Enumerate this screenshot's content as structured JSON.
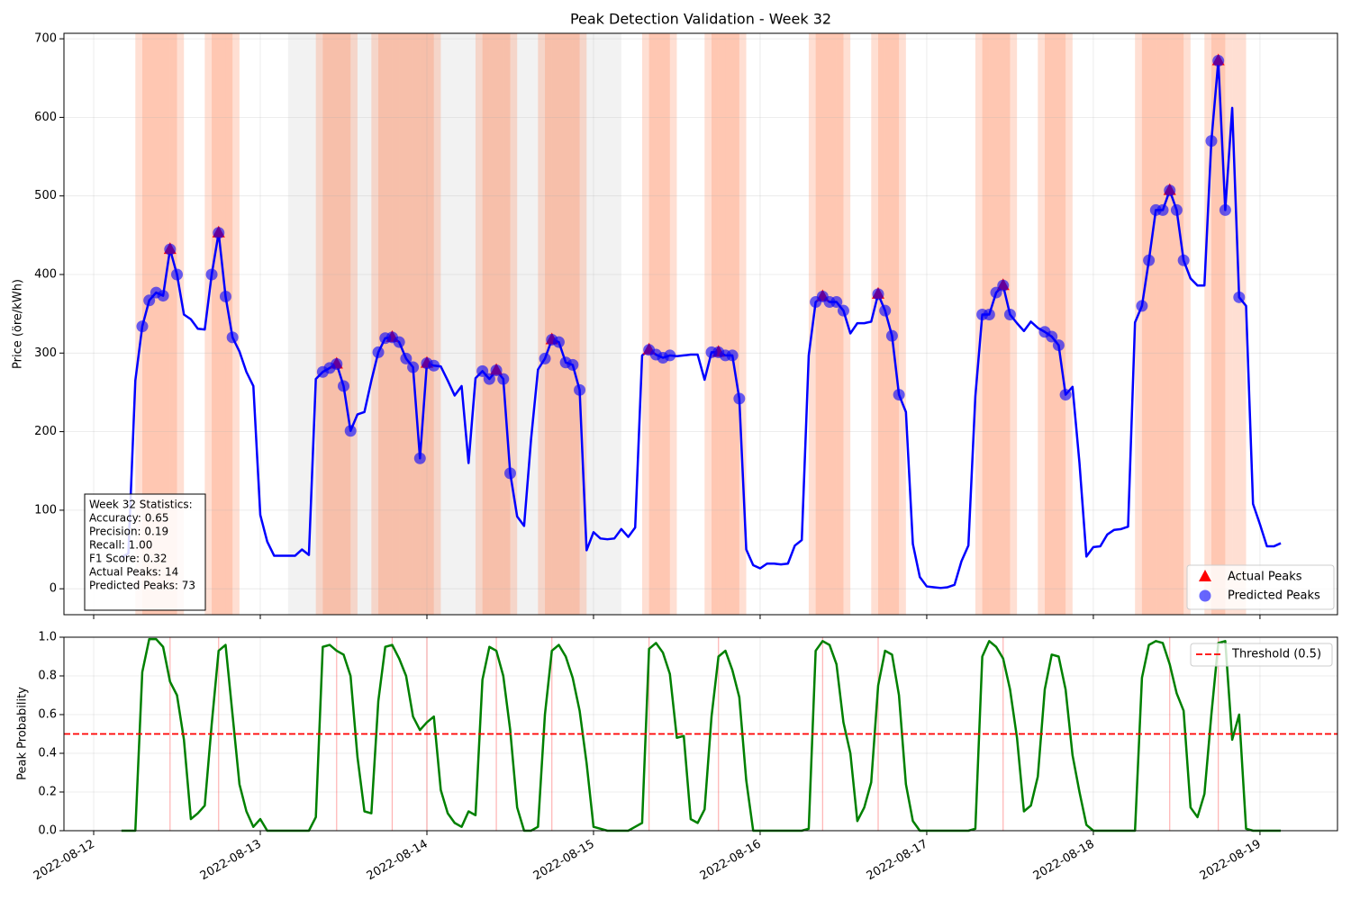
{
  "chart_data": [
    {
      "type": "line",
      "title": "Peak Detection Validation - Week 32",
      "ylabel": "Price (öre/kWh)",
      "x": [
        "2022-08-12T04:00",
        "2022-08-12T05:00",
        "2022-08-12T06:00",
        "2022-08-12T07:00",
        "2022-08-12T08:00",
        "2022-08-12T09:00",
        "2022-08-12T10:00",
        "2022-08-12T11:00",
        "2022-08-12T12:00",
        "2022-08-12T13:00",
        "2022-08-12T14:00",
        "2022-08-12T15:00",
        "2022-08-12T16:00",
        "2022-08-12T17:00",
        "2022-08-12T18:00",
        "2022-08-12T19:00",
        "2022-08-12T20:00",
        "2022-08-12T21:00",
        "2022-08-12T22:00",
        "2022-08-12T23:00",
        "2022-08-13T00:00",
        "2022-08-13T01:00",
        "2022-08-13T02:00",
        "2022-08-13T03:00",
        "2022-08-13T04:00",
        "2022-08-13T05:00",
        "2022-08-13T06:00",
        "2022-08-13T07:00",
        "2022-08-13T08:00",
        "2022-08-13T09:00",
        "2022-08-13T10:00",
        "2022-08-13T11:00",
        "2022-08-13T12:00",
        "2022-08-13T13:00",
        "2022-08-13T14:00",
        "2022-08-13T15:00",
        "2022-08-13T16:00",
        "2022-08-13T17:00",
        "2022-08-13T18:00",
        "2022-08-13T19:00",
        "2022-08-13T20:00",
        "2022-08-13T21:00",
        "2022-08-13T22:00",
        "2022-08-13T23:00",
        "2022-08-14T00:00",
        "2022-08-14T01:00",
        "2022-08-14T02:00",
        "2022-08-14T03:00",
        "2022-08-14T04:00",
        "2022-08-14T05:00",
        "2022-08-14T06:00",
        "2022-08-14T07:00",
        "2022-08-14T08:00",
        "2022-08-14T09:00",
        "2022-08-14T10:00",
        "2022-08-14T11:00",
        "2022-08-14T12:00",
        "2022-08-14T13:00",
        "2022-08-14T14:00",
        "2022-08-14T15:00",
        "2022-08-14T16:00",
        "2022-08-14T17:00",
        "2022-08-14T18:00",
        "2022-08-14T19:00",
        "2022-08-14T20:00",
        "2022-08-14T21:00",
        "2022-08-14T22:00",
        "2022-08-14T23:00",
        "2022-08-15T00:00",
        "2022-08-15T01:00",
        "2022-08-15T02:00",
        "2022-08-15T03:00",
        "2022-08-15T04:00",
        "2022-08-15T05:00",
        "2022-08-15T06:00",
        "2022-08-15T07:00",
        "2022-08-15T08:00",
        "2022-08-15T09:00",
        "2022-08-15T10:00",
        "2022-08-15T11:00",
        "2022-08-15T12:00",
        "2022-08-15T13:00",
        "2022-08-15T14:00",
        "2022-08-15T15:00",
        "2022-08-15T16:00",
        "2022-08-15T17:00",
        "2022-08-15T18:00",
        "2022-08-15T19:00",
        "2022-08-15T20:00",
        "2022-08-15T21:00",
        "2022-08-15T22:00",
        "2022-08-15T23:00",
        "2022-08-16T00:00",
        "2022-08-16T01:00",
        "2022-08-16T02:00",
        "2022-08-16T03:00",
        "2022-08-16T04:00",
        "2022-08-16T05:00",
        "2022-08-16T06:00",
        "2022-08-16T07:00",
        "2022-08-16T08:00",
        "2022-08-16T09:00",
        "2022-08-16T10:00",
        "2022-08-16T11:00",
        "2022-08-16T12:00",
        "2022-08-16T13:00",
        "2022-08-16T14:00",
        "2022-08-16T15:00",
        "2022-08-16T16:00",
        "2022-08-16T17:00",
        "2022-08-16T18:00",
        "2022-08-16T19:00",
        "2022-08-16T20:00",
        "2022-08-16T21:00",
        "2022-08-16T22:00",
        "2022-08-16T23:00",
        "2022-08-17T00:00",
        "2022-08-17T01:00",
        "2022-08-17T02:00",
        "2022-08-17T03:00",
        "2022-08-17T04:00",
        "2022-08-17T05:00",
        "2022-08-17T06:00",
        "2022-08-17T07:00",
        "2022-08-17T08:00",
        "2022-08-17T09:00",
        "2022-08-17T10:00",
        "2022-08-17T11:00",
        "2022-08-17T12:00",
        "2022-08-17T13:00",
        "2022-08-17T14:00",
        "2022-08-17T15:00",
        "2022-08-17T16:00",
        "2022-08-17T17:00",
        "2022-08-17T18:00",
        "2022-08-17T19:00",
        "2022-08-17T20:00",
        "2022-08-17T21:00",
        "2022-08-17T22:00",
        "2022-08-17T23:00",
        "2022-08-18T00:00",
        "2022-08-18T01:00",
        "2022-08-18T02:00",
        "2022-08-18T03:00",
        "2022-08-18T04:00",
        "2022-08-18T05:00",
        "2022-08-18T06:00",
        "2022-08-18T07:00",
        "2022-08-18T08:00",
        "2022-08-18T09:00",
        "2022-08-18T10:00",
        "2022-08-18T11:00",
        "2022-08-18T12:00",
        "2022-08-18T13:00",
        "2022-08-18T14:00",
        "2022-08-18T15:00",
        "2022-08-18T16:00",
        "2022-08-18T17:00",
        "2022-08-18T18:00",
        "2022-08-18T19:00",
        "2022-08-18T20:00",
        "2022-08-18T21:00",
        "2022-08-18T22:00",
        "2022-08-18T23:00",
        "2022-08-19T00:00",
        "2022-08-19T01:00",
        "2022-08-19T02:00",
        "2022-08-19T03:00"
      ],
      "series": [
        {
          "color": "#0000ff",
          "values": [
            40,
            45,
            265,
            334,
            367,
            377,
            373,
            432,
            400,
            349,
            343,
            331,
            330,
            400,
            453,
            372,
            320,
            302,
            276,
            258,
            94,
            60,
            42,
            42,
            42,
            42,
            50,
            43,
            267,
            276,
            281,
            286,
            258,
            201,
            222,
            225,
            265,
            301,
            319,
            320,
            314,
            293,
            282,
            166,
            287,
            284,
            283,
            265,
            246,
            258,
            160,
            268,
            277,
            267,
            278,
            267,
            147,
            92,
            80,
            190,
            279,
            293,
            317,
            314,
            288,
            285,
            253,
            49,
            72,
            64,
            63,
            64,
            76,
            66,
            78,
            297,
            304,
            298,
            294,
            297,
            296,
            297,
            298,
            298,
            266,
            301,
            301,
            297,
            297,
            242,
            50,
            30,
            26,
            32,
            32,
            31,
            32,
            55,
            62,
            297,
            365,
            372,
            365,
            365,
            354,
            325,
            338,
            338,
            340,
            375,
            354,
            322,
            247,
            225,
            57,
            15,
            3,
            2,
            1,
            2,
            5,
            35,
            55,
            245,
            349,
            349,
            377,
            386,
            349,
            338,
            328,
            340,
            332,
            327,
            321,
            310,
            247,
            257,
            160,
            41,
            53,
            54,
            69,
            75,
            76,
            79,
            339,
            360,
            418,
            482,
            482,
            507,
            482,
            418,
            395,
            386,
            386,
            570,
            672,
            482,
            612,
            371,
            360,
            108,
            82,
            54,
            54,
            58
          ]
        },
        {
          "name": "Actual Peaks",
          "color": "#ff0000",
          "marker": "triangle",
          "values": [
            null,
            null,
            null,
            null,
            null,
            null,
            null,
            432,
            null,
            null,
            null,
            null,
            null,
            null,
            453,
            null,
            null,
            null,
            null,
            null,
            null,
            null,
            null,
            null,
            null,
            null,
            null,
            null,
            null,
            null,
            null,
            286,
            null,
            null,
            null,
            null,
            null,
            null,
            null,
            320,
            null,
            null,
            null,
            null,
            287,
            null,
            null,
            null,
            null,
            null,
            null,
            null,
            null,
            null,
            278,
            null,
            null,
            null,
            null,
            null,
            null,
            null,
            317,
            null,
            null,
            null,
            null,
            null,
            null,
            null,
            null,
            null,
            null,
            null,
            null,
            null,
            304,
            null,
            null,
            null,
            null,
            null,
            null,
            null,
            null,
            null,
            301,
            null,
            null,
            null,
            null,
            null,
            null,
            null,
            null,
            null,
            null,
            null,
            null,
            null,
            null,
            372,
            null,
            null,
            null,
            null,
            null,
            null,
            null,
            375,
            null,
            null,
            null,
            null,
            null,
            null,
            null,
            null,
            null,
            null,
            null,
            null,
            null,
            null,
            null,
            null,
            null,
            386,
            null,
            null,
            null,
            null,
            null,
            null,
            null,
            null,
            null,
            null,
            null,
            null,
            null,
            null,
            null,
            null,
            null,
            null,
            null,
            null,
            null,
            null,
            null,
            507,
            null,
            null,
            null,
            null,
            null,
            null,
            672,
            null,
            null,
            null,
            null,
            null,
            null,
            null,
            null,
            null
          ]
        },
        {
          "name": "Predicted Peaks",
          "color": "#0000ff",
          "marker": "circle",
          "values": [
            null,
            null,
            null,
            334,
            367,
            377,
            373,
            432,
            400,
            null,
            null,
            null,
            null,
            400,
            453,
            372,
            320,
            null,
            null,
            null,
            null,
            null,
            null,
            null,
            null,
            null,
            null,
            null,
            null,
            276,
            281,
            286,
            258,
            201,
            null,
            null,
            null,
            301,
            319,
            320,
            314,
            293,
            282,
            166,
            287,
            284,
            null,
            null,
            null,
            null,
            null,
            null,
            277,
            267,
            278,
            267,
            147,
            null,
            null,
            null,
            null,
            293,
            317,
            314,
            288,
            285,
            253,
            null,
            null,
            null,
            null,
            null,
            null,
            null,
            null,
            null,
            304,
            298,
            294,
            297,
            null,
            null,
            null,
            null,
            null,
            301,
            301,
            297,
            297,
            242,
            null,
            null,
            null,
            null,
            null,
            null,
            null,
            null,
            null,
            null,
            365,
            372,
            365,
            365,
            354,
            null,
            null,
            null,
            null,
            375,
            354,
            322,
            247,
            null,
            null,
            null,
            null,
            null,
            null,
            null,
            null,
            null,
            null,
            null,
            349,
            349,
            377,
            386,
            349,
            null,
            null,
            null,
            null,
            327,
            321,
            310,
            247,
            null,
            null,
            null,
            null,
            null,
            null,
            null,
            null,
            null,
            null,
            360,
            418,
            482,
            482,
            507,
            482,
            418,
            null,
            null,
            null,
            570,
            672,
            482,
            null,
            371,
            null,
            null,
            null,
            null,
            null,
            null
          ]
        }
      ],
      "xlim": [
        "2022-08-11T19:43",
        "2022-08-19T11:10"
      ],
      "ylim": [
        -33,
        707
      ],
      "yticks": [
        0,
        100,
        200,
        300,
        400,
        500,
        600,
        700
      ],
      "grid": true,
      "legend": "lower right",
      "shaded_spans": [
        {
          "start": "2022-08-13T04:00",
          "end": "2022-08-15T04:00",
          "color": "#808080"
        }
      ],
      "peak_shade_color": "#ff7f50",
      "stats_box": [
        "Week 32 Statistics:",
        "Accuracy: 0.65",
        "Precision: 0.19",
        "Recall: 1.00",
        "F1 Score: 0.32",
        "Actual Peaks: 14",
        "Predicted Peaks: 73"
      ]
    },
    {
      "type": "line",
      "ylabel": "Peak Probability",
      "series": [
        {
          "color": "#008000",
          "values": [
            0,
            0,
            0,
            0.82,
            0.99,
            0.99,
            0.95,
            0.77,
            0.7,
            0.47,
            0.06,
            0.09,
            0.13,
            0.55,
            0.93,
            0.96,
            0.6,
            0.24,
            0.1,
            0.02,
            0.06,
            0,
            0,
            0,
            0,
            0,
            0,
            0,
            0.07,
            0.95,
            0.96,
            0.93,
            0.91,
            0.8,
            0.38,
            0.1,
            0.09,
            0.67,
            0.95,
            0.96,
            0.89,
            0.8,
            0.59,
            0.52,
            0.56,
            0.59,
            0.21,
            0.09,
            0.04,
            0.02,
            0.1,
            0.08,
            0.78,
            0.95,
            0.93,
            0.8,
            0.52,
            0.12,
            0,
            0,
            0.02,
            0.6,
            0.93,
            0.96,
            0.9,
            0.79,
            0.62,
            0.35,
            0.02,
            0.01,
            0,
            0,
            0,
            0,
            0.02,
            0.04,
            0.94,
            0.97,
            0.92,
            0.81,
            0.48,
            0.49,
            0.06,
            0.04,
            0.11,
            0.59,
            0.9,
            0.93,
            0.83,
            0.69,
            0.26,
            0,
            0,
            0,
            0,
            0,
            0,
            0,
            0,
            0.01,
            0.93,
            0.98,
            0.96,
            0.86,
            0.56,
            0.4,
            0.05,
            0.12,
            0.25,
            0.75,
            0.93,
            0.91,
            0.7,
            0.24,
            0.05,
            0,
            0,
            0,
            0,
            0,
            0,
            0,
            0,
            0.01,
            0.9,
            0.98,
            0.95,
            0.89,
            0.73,
            0.48,
            0.1,
            0.13,
            0.28,
            0.73,
            0.91,
            0.9,
            0.73,
            0.39,
            0.2,
            0.03,
            0,
            0,
            0,
            0,
            0,
            0,
            0,
            0.79,
            0.96,
            0.98,
            0.97,
            0.86,
            0.71,
            0.62,
            0.12,
            0.07,
            0.19,
            0.6,
            0.97,
            0.98,
            0.47,
            0.6,
            0.01,
            0,
            0,
            0,
            0,
            0
          ]
        }
      ],
      "threshold": {
        "name": "Threshold (0.5)",
        "value": 0.5,
        "color": "#ff0000"
      },
      "peak_line_color": "#ff0000",
      "xlim": [
        "2022-08-11T19:43",
        "2022-08-19T11:10"
      ],
      "xticks": [
        "2022-08-12",
        "2022-08-13",
        "2022-08-14",
        "2022-08-15",
        "2022-08-16",
        "2022-08-17",
        "2022-08-18",
        "2022-08-19"
      ],
      "ylim": [
        0,
        1
      ],
      "yticks": [
        {
          "value": 0,
          "label": "0.0"
        },
        0.2,
        0.4,
        0.6,
        0.8,
        {
          "value": 1,
          "label": "1.0"
        }
      ],
      "grid": true,
      "legend": "upper right"
    }
  ]
}
